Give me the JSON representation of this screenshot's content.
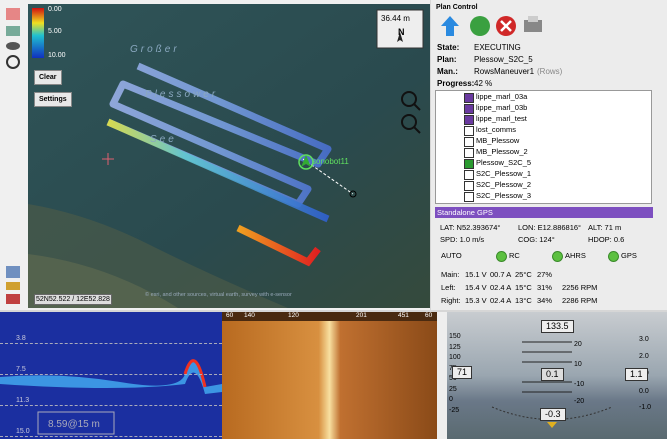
{
  "map": {
    "colorbar_labels": [
      "0.00",
      "5.00",
      "10.00"
    ],
    "lake_labels": [
      "Großer",
      "Plessower",
      "See"
    ],
    "scale": "36.44 m",
    "north": "N",
    "buttons": [
      "Clear",
      "Settings"
    ],
    "vehicle": "sonobot11",
    "coordinates": "52N52.522 / 12E52.828",
    "attribution": "© esri, and other sources, virtual earth, survey with e-sensor"
  },
  "plan_control": {
    "title": "Plan Control",
    "fields": [
      {
        "label": "State:",
        "value": "EXECUTING"
      },
      {
        "label": "Plan:",
        "value": "Plessow_S2C_5"
      },
      {
        "label": "Man.:",
        "value": "RowsManeuver1",
        "note": "(Rows)"
      },
      {
        "label": "Progress:",
        "value": "42 %"
      }
    ]
  },
  "plan_list": [
    "lippe_marl_03a",
    "lippe_marl_03b",
    "lippe_marl_test",
    "lost_comms",
    "MB_Plessow",
    "MB_Plessow_2",
    "Plessow_S2C_5",
    "S2C_Plessow_1",
    "S2C_Plessow_2",
    "S2C_Plessow_3"
  ],
  "gps": {
    "title": "Standalone GPS",
    "rows": [
      [
        "LAT: N52.393674°",
        "LON: E12.886816°",
        "ALT: 71 m"
      ],
      [
        "SPD: 1.0 m/s",
        "COG: 124°",
        "HDOP: 0.6"
      ]
    ]
  },
  "status": {
    "mode": "AUTO",
    "indicators": [
      "RC",
      "AHRS",
      "GPS"
    ]
  },
  "power": [
    [
      "Main:",
      "15.1 V",
      "00.7 A",
      "25°C",
      "27%"
    ],
    [
      "Left:",
      "15.4 V",
      "02.4 A",
      "15°C",
      "31%",
      "2256 RPM"
    ],
    [
      "Right:",
      "15.3 V",
      "02.4 A",
      "13°C",
      "34%",
      "2286 RPM"
    ]
  ],
  "sonar": {
    "depth_labels": [
      "3.8",
      "7.5",
      "11.3",
      "15.0"
    ],
    "readout": "8.59@15 m"
  },
  "waterfall": {
    "labels": [
      "60",
      "140",
      "120",
      "201",
      "451",
      "60"
    ]
  },
  "attitude": {
    "heading": "133.5",
    "speed_scale": [
      "150",
      "125",
      "100",
      "75",
      "50",
      "25",
      "0",
      "-25"
    ],
    "speed": "71",
    "pitch_scale": [
      "20",
      "10",
      "-10",
      "-20"
    ],
    "pitch": "0.1",
    "vs_scale": [
      "3.0",
      "2.0",
      "1.0",
      "0.0",
      "-1.0"
    ],
    "vs": "1.1",
    "roll": "-0.3"
  }
}
